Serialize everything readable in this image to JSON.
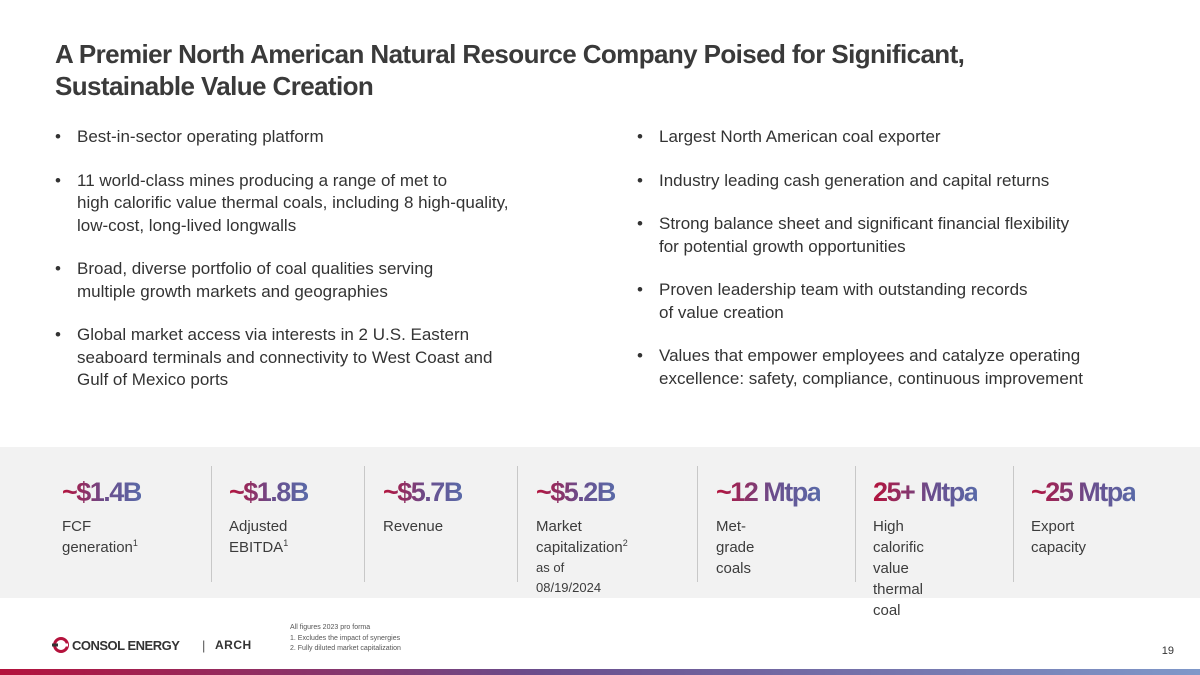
{
  "title": {
    "line1": "A Premier North American Natural Resource Company Poised for Significant,",
    "line2": "Sustainable Value Creation"
  },
  "bullet_symbol": "•",
  "left_bullets": [
    {
      "lines": [
        "Best-in-sector operating platform"
      ]
    },
    {
      "lines": [
        "11 world-class mines producing a range of met to",
        "high calorific value thermal coals, including 8 high-quality,",
        "low-cost, long-lived longwalls"
      ]
    },
    {
      "lines": [
        "Broad, diverse portfolio of coal qualities serving",
        "multiple growth markets and geographies"
      ]
    },
    {
      "lines": [
        "Global market access via interests in 2 U.S. Eastern",
        "seaboard terminals and connectivity to West Coast and",
        "Gulf of Mexico ports"
      ]
    }
  ],
  "right_bullets": [
    {
      "lines": [
        "Largest North American coal exporter"
      ]
    },
    {
      "lines": [
        "Industry leading cash generation and capital returns"
      ]
    },
    {
      "lines": [
        "Strong balance sheet and significant financial flexibility",
        "for potential growth opportunities"
      ]
    },
    {
      "lines": [
        "Proven leadership team with outstanding records",
        "of value creation"
      ]
    },
    {
      "lines": [
        "Values that empower employees and catalyze operating",
        "excellence: safety, compliance, continuous improvement"
      ]
    }
  ],
  "stats": [
    {
      "value": "~$1.4B",
      "label_lines": [
        "FCF generation"
      ],
      "sup": "1"
    },
    {
      "value": "~$1.8B",
      "label_lines": [
        "Adjusted",
        "EBITDA"
      ],
      "sup": "1"
    },
    {
      "value": "~$5.7B",
      "label_lines": [
        "Revenue"
      ]
    },
    {
      "value": "~$5.2B",
      "label_lines": [
        "Market",
        "capitalization"
      ],
      "sup": "2",
      "note": "as of 08/19/2024"
    },
    {
      "value": "~12 Mtpa",
      "label_lines": [
        "Met-grade",
        "coals"
      ]
    },
    {
      "value": "25+ Mtpa",
      "label_lines": [
        "High calorific",
        "value thermal",
        "coal"
      ]
    },
    {
      "value": "~25 Mtpa",
      "label_lines": [
        "Export",
        "capacity"
      ]
    }
  ],
  "footer": {
    "logo1": "CONSOL ENERGY",
    "logo_separator": "|",
    "logo2": "ARCH",
    "notes": [
      "All figures 2023 pro forma",
      "1.  Excludes the impact of synergies",
      "2. Fully diluted market capitalization"
    ],
    "page_number": "19"
  },
  "colors": {
    "title": "#3a3a3a",
    "accent_red": "#b4123c",
    "accent_purple": "#6a4d8c",
    "accent_blue": "#5a6aa8",
    "stats_background": "#f2f2f2"
  }
}
